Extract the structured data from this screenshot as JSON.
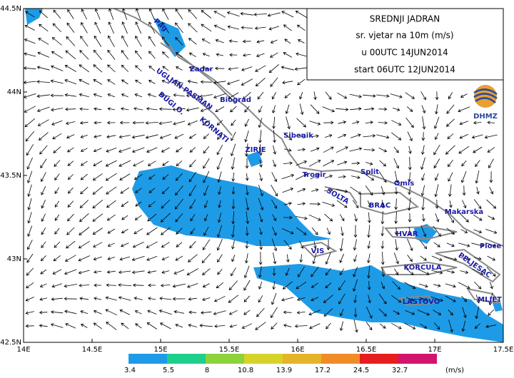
{
  "title_box": {
    "lines": [
      "SREDNJI JADRAN",
      "sr. vjetar na 10m (m/s)",
      "u 00UTC 14JUN2014",
      "start 06UTC 12JUN2014"
    ]
  },
  "logo": "DHMZ",
  "lat_labels": [
    "44.5N",
    "44N",
    "43.5N",
    "43N",
    "42.5N"
  ],
  "lon_labels": [
    "14E",
    "14.5E",
    "15E",
    "15.5E",
    "16E",
    "16.5E",
    "17E",
    "17.5E"
  ],
  "places": [
    "Pag",
    "Zadar",
    "UGLJAN PASMAN",
    "Biograd",
    "DUGI O.",
    "KORNATI",
    "Sibenik",
    "ZIRJE",
    "Trogir",
    "Split",
    "Omis",
    "SOLTA",
    "BRAC",
    "Makarska",
    "HVAR",
    "VIS",
    "Ploce",
    "KORCULA",
    "PELJESAC",
    "LASTOVO",
    "MLJET"
  ],
  "colorbar": {
    "levels": [
      3.4,
      5.5,
      8,
      10.8,
      13.9,
      17.2,
      24.5,
      32.7
    ],
    "colors": [
      "#1e9be6",
      "#1ecf8c",
      "#8cd23c",
      "#d7d22a",
      "#e6b428",
      "#f08c28",
      "#e61e1e",
      "#d2146e"
    ],
    "unit": "(m/s)"
  }
}
